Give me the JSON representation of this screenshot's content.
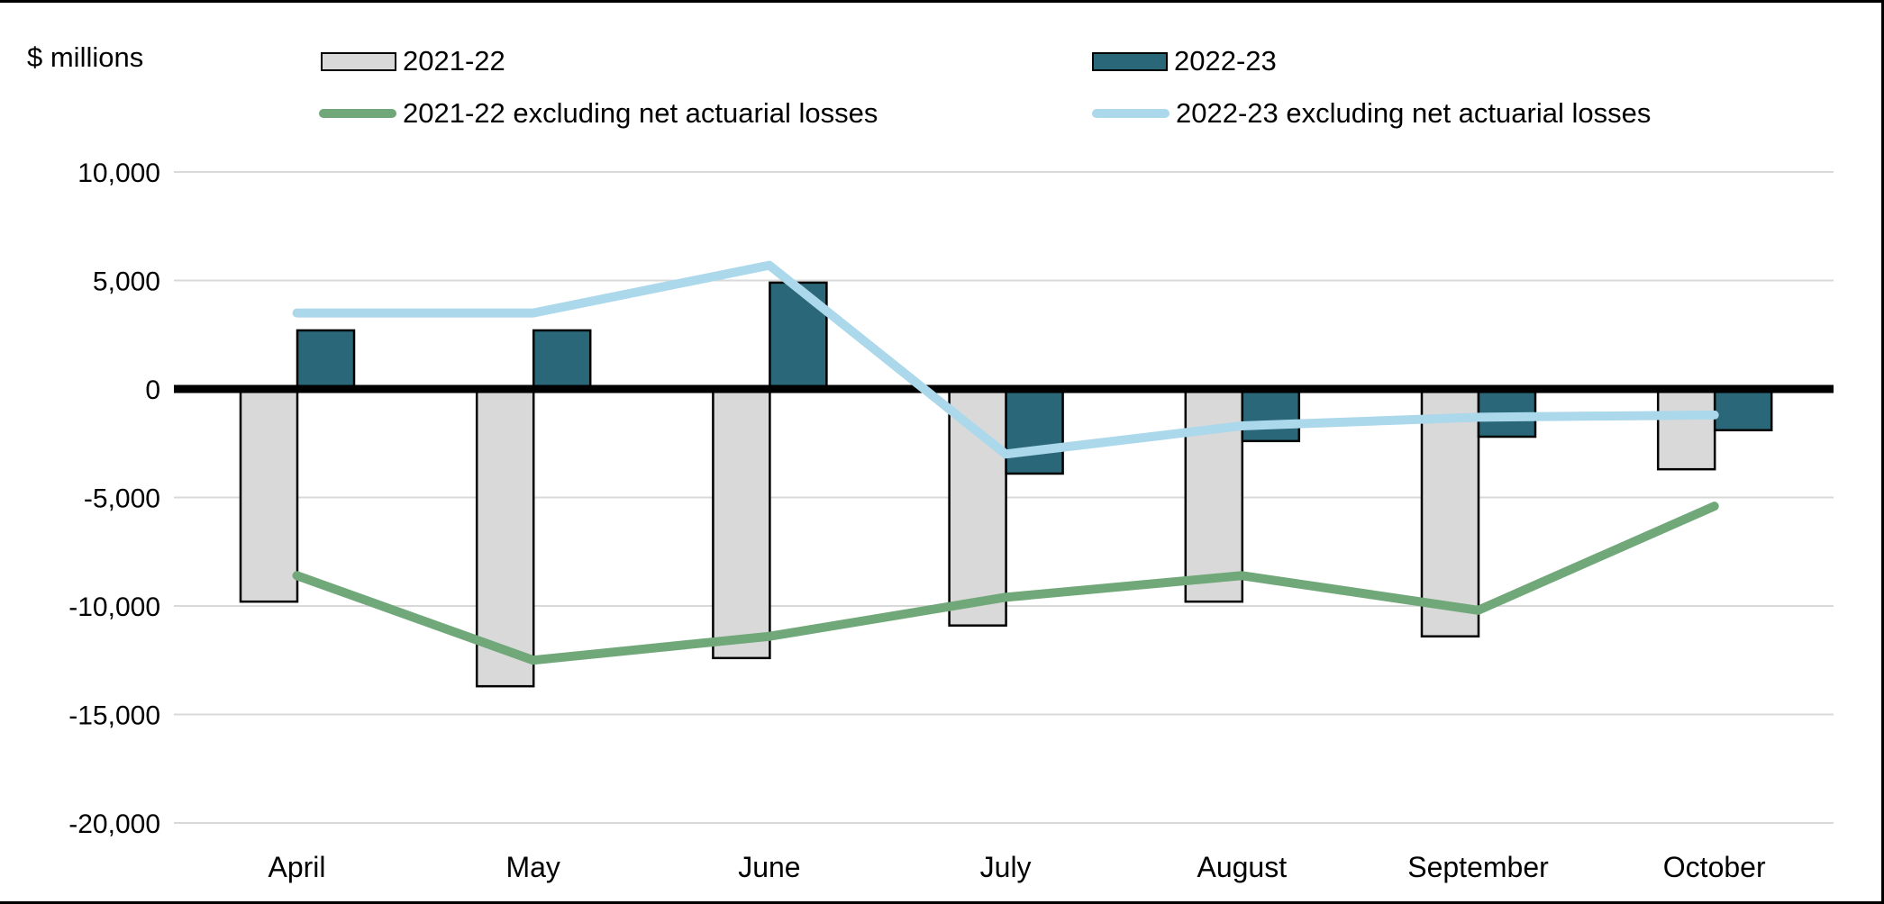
{
  "header": {
    "axis_unit_label": "$ millions"
  },
  "legend": [
    {
      "label": "2021-22",
      "swatch": "box",
      "color": "#D9D9D9"
    },
    {
      "label": "2022-23",
      "swatch": "box",
      "color": "#2A6879"
    },
    {
      "label": "2021-22 excluding net actuarial losses",
      "swatch": "line",
      "color": "#71A87A"
    },
    {
      "label": "2022-23 excluding net actuarial losses",
      "swatch": "line",
      "color": "#ABD8EA"
    }
  ],
  "chart_data": {
    "type": "bar",
    "subtype": "grouped bars with overlaid lines",
    "title": "",
    "ylabel": "$ millions",
    "xlabel": "",
    "categories": [
      "April",
      "May",
      "June",
      "July",
      "August",
      "September",
      "October"
    ],
    "series": [
      {
        "name": "2021-22",
        "type": "bar",
        "color": "#D9D9D9",
        "values": [
          -9800,
          -13700,
          -12400,
          -10900,
          -9800,
          -11400,
          -3700
        ]
      },
      {
        "name": "2022-23",
        "type": "bar",
        "color": "#2A6879",
        "values": [
          2700,
          2700,
          4900,
          -3900,
          -2400,
          -2200,
          -1900
        ]
      },
      {
        "name": "2021-22 excluding net actuarial losses",
        "type": "line",
        "color": "#71A87A",
        "values": [
          -8600,
          -12500,
          -11400,
          -9600,
          -8600,
          -10200,
          -5400
        ]
      },
      {
        "name": "2022-23 excluding net actuarial losses",
        "type": "line",
        "color": "#ABD8EA",
        "values": [
          3500,
          3500,
          5700,
          -3000,
          -1700,
          -1300,
          -1200
        ]
      }
    ],
    "ylim": [
      -20000,
      10000
    ],
    "ytick_interval": 5000,
    "ytick_labels": [
      "10,000",
      "5,000",
      "0",
      "-5,000",
      "-10,000",
      "-15,000",
      "-20,000"
    ],
    "grid": true,
    "zero_axis": true,
    "legend_position": "top",
    "colors": {
      "gridline": "#D9D9D9",
      "zero_line": "#000000",
      "text": "#000000",
      "background": "#FFFFFF"
    }
  }
}
